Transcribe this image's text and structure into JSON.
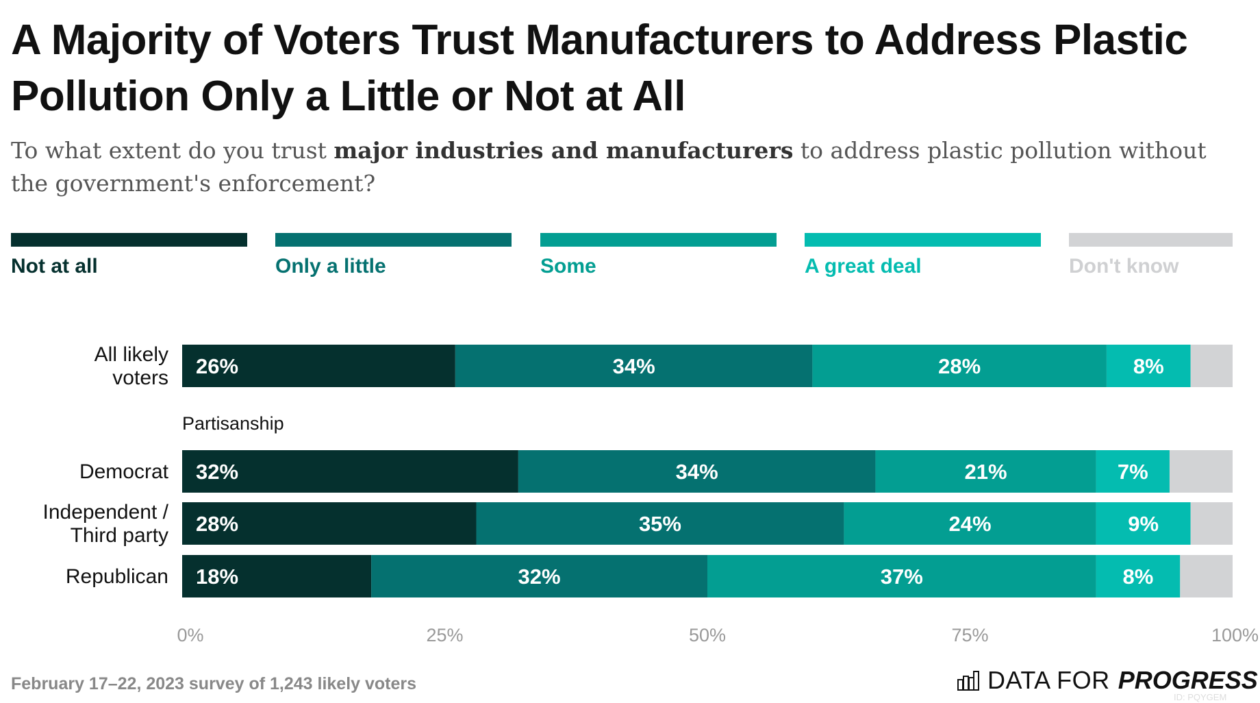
{
  "title": "A Majority of Voters Trust Manufacturers to Address Plastic Pollution Only a Little or Not at All",
  "subtitle": {
    "pre": "To what extent do you trust ",
    "bold": "major industries and manufacturers",
    "post": " to address plastic pollution without the government's enforcement?"
  },
  "footer": "February 17–22, 2023 survey of 1,243 likely voters",
  "logo": {
    "thin": "DATA FOR",
    "bold": "PROGRESS",
    "id": "ID: PQYGEM",
    "icon": "bar-chart-icon"
  },
  "chart_data": {
    "type": "bar",
    "orientation": "horizontal",
    "stacked": true,
    "legend_position": "top",
    "xlim": [
      0,
      100
    ],
    "x_ticks": [
      "0%",
      "25%",
      "50%",
      "75%",
      "100%"
    ],
    "group_label": "Partisanship",
    "categories": [
      "All likely voters",
      "Democrat",
      "Independent / Third party",
      "Republican"
    ],
    "series": [
      {
        "name": "Not at all",
        "color": "#05302e",
        "values": [
          26,
          32,
          28,
          18
        ],
        "labels": [
          "26%",
          "32%",
          "28%",
          "18%"
        ]
      },
      {
        "name": "Only a little",
        "color": "#057170",
        "values": [
          34,
          34,
          35,
          32
        ],
        "labels": [
          "34%",
          "34%",
          "35%",
          "32%"
        ]
      },
      {
        "name": "Some",
        "color": "#039e92",
        "values": [
          28,
          21,
          24,
          37
        ],
        "labels": [
          "28%",
          "21%",
          "24%",
          "37%"
        ]
      },
      {
        "name": "A great deal",
        "color": "#04bcb0",
        "values": [
          8,
          7,
          9,
          8
        ],
        "labels": [
          "8%",
          "7%",
          "9%",
          "8%"
        ]
      },
      {
        "name": "Don't know",
        "color": "#d2d3d5",
        "values": [
          4,
          6,
          4,
          5
        ],
        "labels": [
          "",
          "",
          "",
          ""
        ]
      }
    ]
  }
}
